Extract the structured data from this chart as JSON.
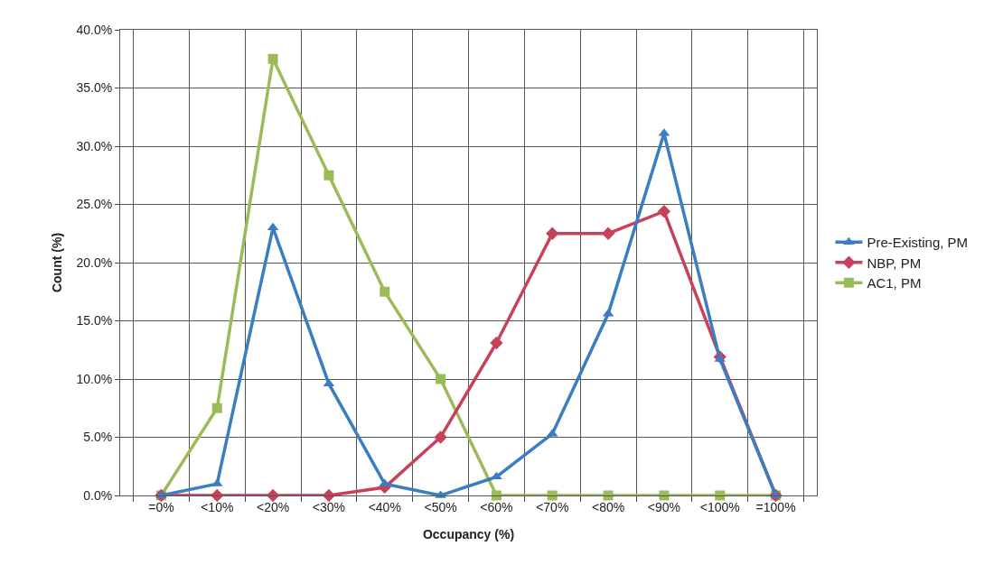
{
  "chart_data": {
    "type": "line",
    "xlabel": "Occupancy (%)",
    "ylabel": "Count (%)",
    "categories": [
      "=0%",
      "<10%",
      "<20%",
      "<30%",
      "<40%",
      "<50%",
      "<60%",
      "<70%",
      "<80%",
      "<90%",
      "<100%",
      "=100%"
    ],
    "series": [
      {
        "name": "Pre-Existing, PM",
        "color": "#3a7dc0",
        "marker": "triangle",
        "values": [
          0,
          1.0,
          23.0,
          9.6,
          1.0,
          0,
          1.6,
          5.3,
          15.6,
          31.1,
          11.7,
          0
        ]
      },
      {
        "name": "NBP, PM",
        "color": "#c8405a",
        "marker": "diamond",
        "values": [
          0,
          0,
          0,
          0,
          0.7,
          5.0,
          13.1,
          22.5,
          22.5,
          24.4,
          11.9,
          0
        ]
      },
      {
        "name": "AC1, PM",
        "color": "#9bbb59",
        "marker": "square",
        "values": [
          0,
          7.5,
          37.5,
          27.5,
          17.5,
          10.0,
          0,
          0,
          0,
          0,
          0,
          0
        ]
      }
    ],
    "ylim": [
      0,
      40
    ],
    "yticks": [
      {
        "value": 0,
        "label": "0.0%"
      },
      {
        "value": 5,
        "label": "5.0%"
      },
      {
        "value": 10,
        "label": "10.0%"
      },
      {
        "value": 15,
        "label": "15.0%"
      },
      {
        "value": 20,
        "label": "20.0%"
      },
      {
        "value": 25,
        "label": "25.0%"
      },
      {
        "value": 30,
        "label": "30.0%"
      },
      {
        "value": 35,
        "label": "35.0%"
      },
      {
        "value": 40,
        "label": "40.0%"
      }
    ],
    "grid": true,
    "legend": "right",
    "line_style": "solid"
  }
}
